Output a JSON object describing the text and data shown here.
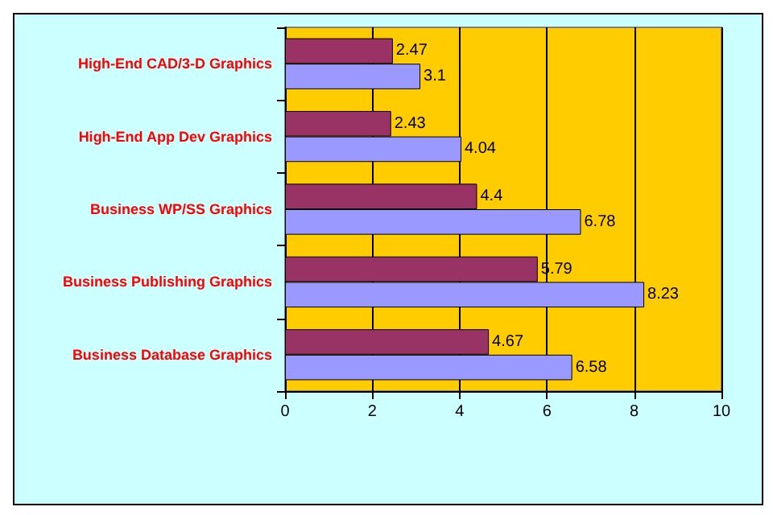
{
  "chart_data": {
    "type": "bar",
    "orientation": "horizontal",
    "categories": [
      "High-End CAD/3-D Graphics",
      "High-End App Dev Graphics",
      "Business WP/SS Graphics",
      "Business Publishing Graphics",
      "Business Database Graphics"
    ],
    "series": [
      {
        "color": "#993366",
        "values": [
          2.47,
          2.43,
          4.4,
          5.79,
          4.67
        ]
      },
      {
        "color": "#9999ff",
        "values": [
          3.1,
          4.04,
          6.78,
          8.23,
          6.58
        ]
      }
    ],
    "xlim": [
      0,
      10
    ],
    "xticks": [
      0,
      2,
      4,
      6,
      8,
      10
    ],
    "grid": "x",
    "data_labels": true
  }
}
